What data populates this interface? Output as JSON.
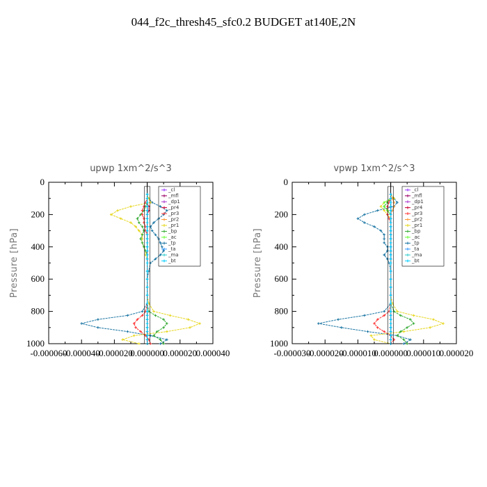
{
  "title": "044_f2c_thresh45_sfc0.2  BUDGET at140E,2N",
  "chart_data": [
    {
      "type": "line",
      "title": "upwp   1xm^2/s^3",
      "ylabel": "Pressure  [hPa]",
      "xlabel": "",
      "xlim": [
        -6e-05,
        4e-05
      ],
      "ylim": [
        1000,
        0
      ],
      "xticks": [
        "-0.000060",
        "-0.000040",
        "-0.000020",
        "0.000000",
        "0.000020",
        "0.000040"
      ],
      "yticks": [
        "0",
        "200",
        "400",
        "600",
        "800",
        "1000"
      ],
      "legend_position": "top-right",
      "pressure": [
        75,
        100,
        125,
        150,
        175,
        200,
        225,
        250,
        275,
        300,
        325,
        350,
        375,
        400,
        425,
        450,
        475,
        500,
        550,
        600,
        650,
        700,
        750,
        800,
        825,
        850,
        875,
        900,
        925,
        950,
        975,
        1000
      ],
      "series": [
        {
          "name": "_cl",
          "color": "#9933ff",
          "values": [
            0,
            0,
            0,
            0,
            0,
            0,
            0,
            0,
            0,
            0,
            0,
            0,
            0,
            0,
            0,
            0,
            0,
            0,
            0,
            0,
            0,
            0,
            0,
            0,
            0,
            0,
            0,
            0,
            0,
            0,
            0,
            0
          ]
        },
        {
          "name": "_mfl",
          "color": "#990066",
          "values": [
            0,
            0,
            0,
            0,
            0,
            0,
            0,
            0,
            0,
            0,
            0,
            0,
            0,
            0,
            0,
            0,
            0,
            0,
            0,
            0,
            0,
            0,
            0,
            0,
            0,
            0,
            0,
            0,
            0,
            0,
            0,
            0
          ]
        },
        {
          "name": "_dp1",
          "color": "#aa33cc",
          "values": [
            0,
            0,
            0,
            0,
            0,
            0,
            0,
            0,
            0,
            0,
            0,
            0,
            0,
            0,
            0,
            0,
            0,
            0,
            0,
            0,
            0,
            0,
            0,
            0,
            0,
            0,
            0,
            0,
            0,
            0,
            0,
            0
          ]
        },
        {
          "name": "_pr4",
          "color": "#cc0033",
          "values": [
            0,
            0,
            0,
            1e-06,
            1e-06,
            0,
            0,
            0,
            0,
            0,
            0,
            0,
            0,
            0,
            0,
            0,
            0,
            0,
            0,
            0,
            0,
            0,
            0,
            0,
            0,
            0,
            0,
            0,
            0,
            0,
            0,
            0
          ]
        },
        {
          "name": "_pr3",
          "color": "#ff3333",
          "values": [
            0,
            0,
            -1e-06,
            -2e-06,
            -3e-06,
            -3e-06,
            -2e-06,
            -2e-06,
            -1e-06,
            -1e-06,
            0,
            0,
            0,
            0,
            0,
            0,
            0,
            0,
            0,
            0,
            0,
            0,
            0,
            -1e-06,
            -3e-06,
            -6e-06,
            -8e-06,
            -7e-06,
            -4e-06,
            -1e-06,
            1e-06,
            2e-06
          ]
        },
        {
          "name": "_pr2",
          "color": "#ff9933",
          "values": [
            0,
            0,
            0,
            0,
            0,
            0,
            0,
            0,
            0,
            0,
            0,
            0,
            0,
            0,
            0,
            0,
            0,
            0,
            0,
            0,
            0,
            0,
            0,
            0,
            0,
            0,
            0,
            0,
            0,
            0,
            0,
            0
          ]
        },
        {
          "name": "_pr1",
          "color": "#e6d619",
          "values": [
            0,
            1e-06,
            2e-06,
            -1e-05,
            -1.8e-05,
            -2.2e-05,
            -1.6e-05,
            -1e-05,
            -7e-06,
            -5e-06,
            -3e-06,
            -3e-06,
            -3e-06,
            -2e-06,
            -1e-06,
            -1e-06,
            0,
            0,
            0,
            0,
            0,
            0,
            1e-06,
            4e-06,
            1.4e-05,
            2.5e-05,
            3.2e-05,
            2.6e-05,
            1.2e-05,
            -8e-06,
            -1.5e-05,
            -5e-06
          ]
        },
        {
          "name": "_bp",
          "color": "#33aa33",
          "values": [
            0,
            0,
            0,
            -1e-06,
            -2e-06,
            -4e-06,
            -6e-06,
            -5e-06,
            -3e-06,
            -2e-06,
            -3e-06,
            -4e-06,
            -3e-06,
            -2e-06,
            -1e-06,
            0,
            0,
            0,
            0,
            0,
            0,
            0,
            0,
            1e-06,
            5e-06,
            1e-05,
            1.2e-05,
            1e-05,
            6e-06,
            4e-06,
            8e-06,
            1e-05
          ]
        },
        {
          "name": "_ac",
          "color": "#66ff33",
          "values": [
            0,
            0,
            0,
            0,
            0,
            0,
            0,
            0,
            0,
            0,
            0,
            0,
            0,
            0,
            0,
            0,
            0,
            0,
            0,
            0,
            0,
            0,
            0,
            0,
            0,
            0,
            0,
            0,
            0,
            0,
            0,
            0
          ]
        },
        {
          "name": "_tp",
          "color": "#1a75a3",
          "values": [
            0,
            1e-06,
            3e-06,
            8e-06,
            1.2e-05,
            1e-05,
            7e-06,
            4e-06,
            2e-06,
            3e-06,
            5e-06,
            7e-06,
            8e-06,
            9e-06,
            1e-05,
            8e-06,
            5e-06,
            2e-06,
            1e-06,
            0,
            0,
            0,
            0,
            -3e-06,
            -1.2e-05,
            -3e-05,
            -4e-05,
            -3e-05,
            -1.2e-05,
            2e-06,
            1.2e-05,
            8e-06
          ]
        },
        {
          "name": "_ta",
          "color": "#3399ff",
          "values": [
            0,
            0,
            0,
            0,
            0,
            0,
            0,
            0,
            0,
            0,
            0,
            0,
            0,
            0,
            0,
            0,
            0,
            0,
            0,
            0,
            0,
            0,
            0,
            0,
            0,
            0,
            0,
            0,
            0,
            0,
            0,
            0
          ]
        },
        {
          "name": "_ma",
          "color": "#33cccc",
          "values": [
            0,
            0,
            0,
            0,
            0,
            0,
            0,
            0,
            0,
            0,
            0,
            0,
            0,
            0,
            0,
            0,
            0,
            0,
            0,
            0,
            0,
            0,
            0,
            0,
            0,
            0,
            0,
            0,
            0,
            0,
            0,
            0
          ]
        },
        {
          "name": "_bt",
          "color": "#00ccff",
          "values": [
            0,
            0,
            0,
            0,
            0,
            0,
            0,
            0,
            0,
            0,
            0,
            0,
            0,
            0,
            0,
            0,
            0,
            0,
            0,
            0,
            0,
            0,
            0,
            0,
            0,
            0,
            0,
            0,
            0,
            0,
            0,
            0
          ]
        }
      ]
    },
    {
      "type": "line",
      "title": "vpwp   1xm^2/s^3",
      "ylabel": "Pressure  [hPa]",
      "xlabel": "",
      "xlim": [
        -3e-05,
        2e-05
      ],
      "ylim": [
        1000,
        0
      ],
      "xticks": [
        "-0.000030",
        "-0.000020",
        "-0.000010",
        "0.000000",
        "0.000010",
        "0.000020"
      ],
      "yticks": [
        "0",
        "200",
        "400",
        "600",
        "800",
        "1000"
      ],
      "legend_position": "top-right",
      "pressure": [
        75,
        100,
        125,
        150,
        175,
        200,
        225,
        250,
        275,
        300,
        325,
        350,
        375,
        400,
        425,
        450,
        475,
        500,
        550,
        600,
        650,
        700,
        750,
        800,
        825,
        850,
        875,
        900,
        925,
        950,
        975,
        1000
      ],
      "series": [
        {
          "name": "_cl",
          "color": "#9933ff",
          "values": [
            0,
            0,
            0,
            0,
            0,
            0,
            0,
            0,
            0,
            0,
            0,
            0,
            0,
            0,
            0,
            0,
            0,
            0,
            0,
            0,
            0,
            0,
            0,
            0,
            0,
            0,
            0,
            0,
            0,
            0,
            0,
            0
          ]
        },
        {
          "name": "_mfl",
          "color": "#990066",
          "values": [
            0,
            0,
            0,
            0,
            0,
            0,
            0,
            0,
            0,
            0,
            0,
            0,
            0,
            0,
            0,
            0,
            0,
            0,
            0,
            0,
            0,
            0,
            0,
            0,
            0,
            0,
            0,
            0,
            0,
            0,
            0,
            0
          ]
        },
        {
          "name": "_dp1",
          "color": "#aa33cc",
          "values": [
            0,
            0,
            0,
            0,
            0,
            0,
            0,
            0,
            0,
            0,
            0,
            0,
            0,
            0,
            0,
            0,
            0,
            0,
            0,
            0,
            0,
            0,
            0,
            0,
            0,
            0,
            0,
            0,
            0,
            0,
            0,
            0
          ]
        },
        {
          "name": "_pr4",
          "color": "#cc0033",
          "values": [
            0,
            0,
            0,
            0,
            0,
            0,
            0,
            0,
            0,
            0,
            0,
            0,
            0,
            0,
            0,
            0,
            0,
            0,
            0,
            0,
            0,
            0,
            0,
            0,
            0,
            0,
            0,
            0,
            0,
            0,
            0,
            0
          ]
        },
        {
          "name": "_pr3",
          "color": "#ff3333",
          "values": [
            0,
            0,
            -5e-07,
            -1e-06,
            -1e-06,
            -1e-06,
            -5e-07,
            0,
            0,
            0,
            0,
            0,
            0,
            0,
            0,
            0,
            0,
            0,
            0,
            0,
            0,
            0,
            0,
            -5e-07,
            -2e-06,
            -4e-06,
            -5e-06,
            -4e-06,
            -2e-06,
            0,
            1e-06,
            0
          ]
        },
        {
          "name": "_pr2",
          "color": "#ff9933",
          "values": [
            0,
            5e-07,
            1e-06,
            1e-06,
            5e-07,
            0,
            0,
            0,
            0,
            0,
            0,
            0,
            0,
            0,
            0,
            0,
            0,
            0,
            0,
            0,
            0,
            0,
            0,
            0,
            0,
            0,
            0,
            0,
            0,
            0,
            0,
            0
          ]
        },
        {
          "name": "_pr1",
          "color": "#e6d619",
          "values": [
            0,
            1e-06,
            -2e-06,
            -3e-06,
            -2e-06,
            -1e-06,
            0,
            0,
            0,
            0,
            0,
            0,
            0,
            0,
            0,
            0,
            0,
            0,
            0,
            0,
            0,
            0,
            5e-07,
            2e-06,
            7e-06,
            1.3e-05,
            1.6e-05,
            1.2e-05,
            4e-06,
            -6e-06,
            -5e-06,
            0
          ]
        },
        {
          "name": "_bp",
          "color": "#33aa33",
          "values": [
            0,
            0,
            -1e-06,
            -2e-06,
            -1e-06,
            0,
            0,
            0,
            0,
            0,
            0,
            0,
            0,
            0,
            0,
            0,
            0,
            0,
            0,
            0,
            0,
            0,
            0,
            1e-06,
            3e-06,
            6e-06,
            7e-06,
            5e-06,
            3e-06,
            2e-06,
            4e-06,
            5e-06
          ]
        },
        {
          "name": "_ac",
          "color": "#66ff33",
          "values": [
            0,
            0,
            -2e-06,
            -2e-06,
            -1e-06,
            0,
            0,
            0,
            0,
            0,
            0,
            0,
            0,
            0,
            0,
            0,
            0,
            0,
            0,
            0,
            0,
            0,
            0,
            0,
            0,
            0,
            0,
            0,
            0,
            0,
            0,
            0
          ]
        },
        {
          "name": "_tp",
          "color": "#1a75a3",
          "values": [
            0,
            1e-06,
            2e-06,
            1e-06,
            -4e-06,
            -8e-06,
            -1e-05,
            -8e-06,
            -5e-06,
            -3e-06,
            -2e-06,
            -2e-06,
            -2e-06,
            -1e-06,
            -1e-06,
            -2e-06,
            -1e-06,
            -5e-07,
            0,
            0,
            0,
            0,
            0,
            -2e-06,
            -8e-06,
            -1.6e-05,
            -2.2e-05,
            -1.5e-05,
            -7e-06,
            2e-06,
            6e-06,
            4e-06
          ]
        },
        {
          "name": "_ta",
          "color": "#3399ff",
          "values": [
            0,
            0,
            0,
            0,
            0,
            0,
            0,
            0,
            0,
            0,
            0,
            0,
            0,
            0,
            0,
            0,
            0,
            0,
            0,
            0,
            0,
            0,
            0,
            0,
            0,
            0,
            0,
            0,
            0,
            0,
            0,
            0
          ]
        },
        {
          "name": "_ma",
          "color": "#33cccc",
          "values": [
            0,
            0,
            0,
            0,
            0,
            0,
            0,
            0,
            0,
            0,
            0,
            0,
            0,
            0,
            0,
            0,
            0,
            0,
            0,
            0,
            0,
            0,
            0,
            0,
            0,
            0,
            0,
            0,
            0,
            0,
            0,
            0
          ]
        },
        {
          "name": "_bt",
          "color": "#00ccff",
          "values": [
            0,
            0,
            0,
            0,
            0,
            0,
            0,
            0,
            0,
            0,
            0,
            0,
            0,
            0,
            0,
            0,
            0,
            0,
            0,
            0,
            0,
            0,
            0,
            0,
            0,
            0,
            0,
            0,
            0,
            0,
            0,
            0
          ]
        }
      ]
    }
  ]
}
